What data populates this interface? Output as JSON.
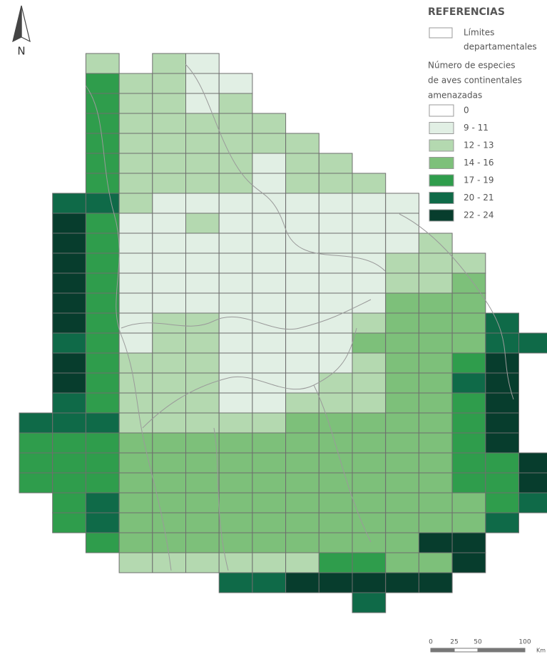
{
  "north": "N",
  "legend": {
    "title": "REFERENCIAS",
    "boundary_lines": [
      "Límites",
      "departamentales"
    ],
    "species_title_lines": [
      "Número de especies",
      "de aves continentales",
      "amenazadas"
    ],
    "classes": [
      {
        "label": "0",
        "color": "#ffffff"
      },
      {
        "label": "9 - 11",
        "color": "#e1efe4"
      },
      {
        "label": "12 - 13",
        "color": "#b4d9b0"
      },
      {
        "label": "14 - 16",
        "color": "#7dc07a"
      },
      {
        "label": "17 - 19",
        "color": "#2f9d4c"
      },
      {
        "label": "20 - 21",
        "color": "#0f6a48"
      },
      {
        "label": "22 - 24",
        "color": "#073d2d"
      }
    ]
  },
  "scale": {
    "labels": [
      "0",
      "25",
      "50",
      "100"
    ],
    "unit": "Km"
  },
  "grid": {
    "rows": [
      [
        null,
        null,
        2,
        null,
        2,
        1,
        null,
        null,
        null,
        null,
        null,
        null,
        null,
        null,
        null,
        null
      ],
      [
        null,
        null,
        4,
        2,
        2,
        1,
        1,
        null,
        null,
        null,
        null,
        null,
        null,
        null,
        null,
        null
      ],
      [
        null,
        null,
        4,
        2,
        2,
        1,
        2,
        null,
        null,
        null,
        null,
        null,
        null,
        null,
        null,
        null
      ],
      [
        null,
        null,
        4,
        2,
        2,
        2,
        2,
        2,
        null,
        null,
        null,
        null,
        null,
        null,
        null,
        null
      ],
      [
        null,
        null,
        4,
        2,
        2,
        2,
        2,
        2,
        2,
        null,
        null,
        null,
        null,
        null,
        null,
        null
      ],
      [
        null,
        null,
        4,
        2,
        2,
        2,
        2,
        1,
        2,
        2,
        null,
        null,
        null,
        null,
        null,
        null
      ],
      [
        null,
        null,
        4,
        2,
        2,
        2,
        2,
        1,
        2,
        2,
        2,
        null,
        null,
        null,
        null,
        null
      ],
      [
        null,
        5,
        5,
        2,
        1,
        1,
        1,
        1,
        1,
        1,
        1,
        1,
        null,
        null,
        null,
        null
      ],
      [
        null,
        6,
        4,
        1,
        1,
        2,
        1,
        1,
        1,
        1,
        1,
        1,
        null,
        null,
        null,
        null
      ],
      [
        null,
        6,
        4,
        1,
        1,
        1,
        1,
        1,
        1,
        1,
        1,
        1,
        2,
        null,
        null,
        null
      ],
      [
        null,
        6,
        4,
        1,
        1,
        1,
        1,
        1,
        1,
        1,
        1,
        2,
        2,
        2,
        null,
        null
      ],
      [
        null,
        6,
        4,
        1,
        1,
        1,
        1,
        1,
        1,
        1,
        1,
        2,
        2,
        3,
        null,
        null
      ],
      [
        null,
        6,
        4,
        1,
        1,
        1,
        1,
        1,
        1,
        1,
        1,
        3,
        3,
        3,
        null,
        null
      ],
      [
        null,
        6,
        4,
        1,
        2,
        2,
        1,
        1,
        1,
        1,
        2,
        3,
        3,
        3,
        5,
        null
      ],
      [
        null,
        5,
        4,
        1,
        2,
        2,
        1,
        1,
        1,
        1,
        3,
        3,
        3,
        3,
        5,
        5
      ],
      [
        null,
        6,
        4,
        2,
        2,
        2,
        1,
        1,
        1,
        1,
        2,
        3,
        3,
        4,
        6,
        null
      ],
      [
        null,
        6,
        4,
        2,
        2,
        2,
        1,
        1,
        1,
        2,
        2,
        3,
        3,
        5,
        6,
        null
      ],
      [
        null,
        5,
        4,
        2,
        2,
        2,
        1,
        1,
        2,
        2,
        2,
        3,
        3,
        4,
        6,
        null
      ],
      [
        5,
        5,
        5,
        2,
        2,
        2,
        2,
        2,
        3,
        3,
        3,
        3,
        3,
        4,
        6,
        null
      ],
      [
        4,
        4,
        4,
        3,
        3,
        3,
        3,
        3,
        3,
        3,
        3,
        3,
        3,
        4,
        6,
        null
      ],
      [
        4,
        4,
        4,
        3,
        3,
        3,
        3,
        3,
        3,
        3,
        3,
        3,
        3,
        4,
        4,
        6
      ],
      [
        4,
        4,
        4,
        3,
        3,
        3,
        3,
        3,
        3,
        3,
        3,
        3,
        3,
        4,
        4,
        6
      ],
      [
        null,
        4,
        5,
        3,
        3,
        3,
        3,
        3,
        3,
        3,
        3,
        3,
        3,
        3,
        4,
        5
      ],
      [
        null,
        4,
        5,
        3,
        3,
        3,
        3,
        3,
        3,
        3,
        3,
        3,
        3,
        3,
        5,
        null
      ],
      [
        null,
        null,
        4,
        3,
        3,
        3,
        3,
        3,
        3,
        3,
        3,
        3,
        6,
        6,
        null,
        null
      ],
      [
        null,
        null,
        null,
        2,
        2,
        2,
        2,
        2,
        2,
        4,
        4,
        3,
        3,
        6,
        null,
        null
      ],
      [
        null,
        null,
        null,
        null,
        null,
        null,
        5,
        5,
        6,
        6,
        6,
        6,
        6,
        null,
        null,
        null
      ],
      [
        null,
        null,
        null,
        null,
        null,
        null,
        null,
        null,
        null,
        null,
        5,
        null,
        null,
        null,
        null,
        null
      ]
    ]
  }
}
